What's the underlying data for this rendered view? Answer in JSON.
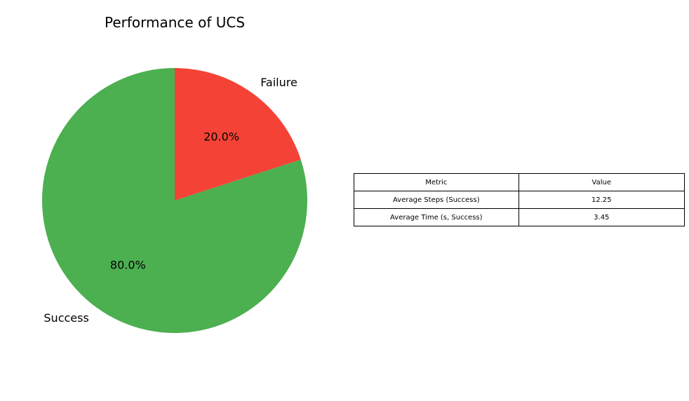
{
  "chart_data": [
    {
      "type": "pie",
      "title": "Performance of UCS",
      "slices": [
        {
          "label": "Success",
          "value": 80.0,
          "pct_label": "80.0%",
          "color": "#4CAF50"
        },
        {
          "label": "Failure",
          "value": 20.0,
          "pct_label": "20.0%",
          "color": "#F44336"
        }
      ],
      "start_angle_deg": 90,
      "direction": "counterclockwise"
    },
    {
      "type": "table",
      "headers": [
        "Metric",
        "Value"
      ],
      "rows": [
        [
          "Average Steps (Success)",
          "12.25"
        ],
        [
          "Average Time (s, Success)",
          "3.45"
        ]
      ]
    }
  ]
}
